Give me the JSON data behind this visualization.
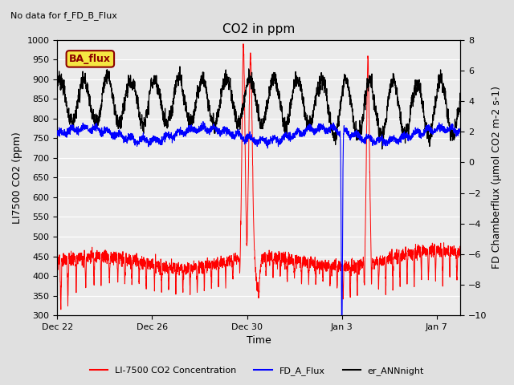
{
  "title": "CO2 in ppm",
  "top_left_text": "No data for f_FD_B_Flux",
  "annotation_box": "BA_flux",
  "xlabel": "Time",
  "ylabel_left": "LI7500 CO2 (ppm)",
  "ylabel_right": "FD Chamberflux (μmol CO2 m-2 s-1)",
  "ylim_left": [
    300,
    1000
  ],
  "ylim_right": [
    -10,
    8
  ],
  "yticks_left": [
    300,
    350,
    400,
    450,
    500,
    550,
    600,
    650,
    700,
    750,
    800,
    850,
    900,
    950,
    1000
  ],
  "yticks_right": [
    -10,
    -8,
    -6,
    -4,
    -2,
    0,
    2,
    4,
    6,
    8
  ],
  "xtick_labels": [
    "Dec 22",
    "Dec 26",
    "Dec 30",
    "Jan 3",
    "Jan 7"
  ],
  "xtick_days": [
    0,
    4,
    8,
    12,
    16
  ],
  "xlim": [
    0,
    17
  ],
  "bg_color": "#e0e0e0",
  "plot_bg_color": "#ebebeb",
  "grid_color": "white",
  "red_color": "#ff0000",
  "blue_color": "#0000ff",
  "black_color": "#000000",
  "legend_labels": [
    "LI-7500 CO2 Concentration",
    "FD_A_Flux",
    "er_ANNnight"
  ],
  "legend_colors": [
    "#ff0000",
    "#0000ff",
    "#000000"
  ],
  "annotation_facecolor": "#f5e642",
  "annotation_edgecolor": "#8b0000",
  "annotation_textcolor": "#8b0000"
}
